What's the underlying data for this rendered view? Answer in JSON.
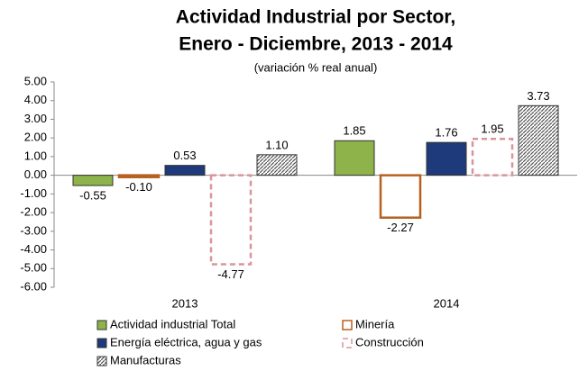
{
  "chart_data": {
    "type": "bar",
    "title": [
      "Actividad Industrial por Sector,",
      "Enero - Diciembre, 2013 - 2014"
    ],
    "subtitle": "(variación % real anual)",
    "categories": [
      "2013",
      "2014"
    ],
    "series": [
      {
        "name": "Actividad industrial Total",
        "color": "#8db34a",
        "fill": "solid",
        "values": [
          -0.55,
          1.85
        ],
        "value_labels": [
          "-0.55",
          "1.85"
        ]
      },
      {
        "name": "Minería",
        "color": "#b8601e",
        "fill": "outline",
        "values": [
          -0.1,
          -2.27
        ],
        "value_labels": [
          "-0.10",
          "-2.27"
        ]
      },
      {
        "name": "Energía eléctrica, agua y  gas",
        "color": "#1f3a7a",
        "fill": "solid",
        "values": [
          0.53,
          1.76
        ],
        "value_labels": [
          "0.53",
          "1.76"
        ]
      },
      {
        "name": "Construcción",
        "color": "#d9959a",
        "fill": "dashed",
        "values": [
          -4.77,
          1.95
        ],
        "value_labels": [
          "-4.77",
          "1.95"
        ]
      },
      {
        "name": "Manufacturas",
        "color": "#555555",
        "fill": "hatch",
        "values": [
          1.1,
          3.73
        ],
        "value_labels": [
          "1.10",
          "3.73"
        ]
      }
    ],
    "ylim": [
      -6,
      5
    ],
    "yticks": [
      {
        "value": 5,
        "label": "5.00"
      },
      {
        "value": 4,
        "label": "4.00"
      },
      {
        "value": 3,
        "label": "3.00"
      },
      {
        "value": 2,
        "label": "2.00"
      },
      {
        "value": 1,
        "label": "1.00"
      },
      {
        "value": 0,
        "label": "0.00"
      },
      {
        "value": -1,
        "label": "-1.00"
      },
      {
        "value": -2,
        "label": "-2.00"
      },
      {
        "value": -3,
        "label": "-3.00"
      },
      {
        "value": -4,
        "label": "-4.00"
      },
      {
        "value": -5,
        "label": "-5.00"
      },
      {
        "value": -6,
        "label": "-6.00"
      }
    ],
    "grid": false
  }
}
